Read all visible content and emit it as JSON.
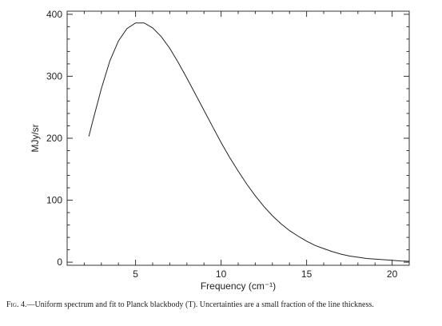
{
  "chart_data": {
    "type": "line",
    "title": "",
    "xlabel": "Frequency (cm⁻¹)",
    "ylabel": "MJy/sr",
    "xlim": [
      1,
      21
    ],
    "ylim": [
      -5,
      405
    ],
    "x_ticks": [
      5,
      10,
      15,
      20
    ],
    "x_tick_labels": [
      "5",
      "10",
      "15",
      "20"
    ],
    "y_ticks": [
      0,
      100,
      200,
      300,
      400
    ],
    "y_tick_labels": [
      "0",
      "100",
      "200",
      "300",
      "400"
    ],
    "grid": false,
    "series": [
      {
        "x": [
          2.27,
          2.5,
          3.0,
          3.5,
          4.0,
          4.5,
          5.0,
          5.5,
          6.0,
          6.5,
          7.0,
          7.5,
          8.0,
          8.5,
          9.0,
          9.5,
          10.0,
          10.5,
          11.0,
          11.5,
          12.0,
          12.5,
          13.0,
          13.5,
          14.0,
          14.5,
          15.0,
          15.5,
          16.0,
          16.5,
          17.0,
          17.5,
          18.0,
          18.5,
          19.0,
          19.5,
          20.0,
          20.5,
          21.0
        ],
        "y": [
          203,
          228,
          280,
          325,
          357,
          377,
          386,
          386,
          378,
          364,
          345,
          322,
          297,
          271,
          245,
          219,
          193,
          169,
          147,
          126,
          107,
          90,
          75,
          62,
          51,
          42,
          34,
          27,
          22,
          17,
          13,
          10,
          8,
          6,
          5,
          4,
          3,
          2,
          1.5
        ]
      }
    ]
  },
  "caption": {
    "prefix": "Fig.",
    "number": " 4.",
    "text": "—Uniform spectrum and fit to Planck blackbody (T). Uncertainties are a small fraction of the line thickness."
  }
}
